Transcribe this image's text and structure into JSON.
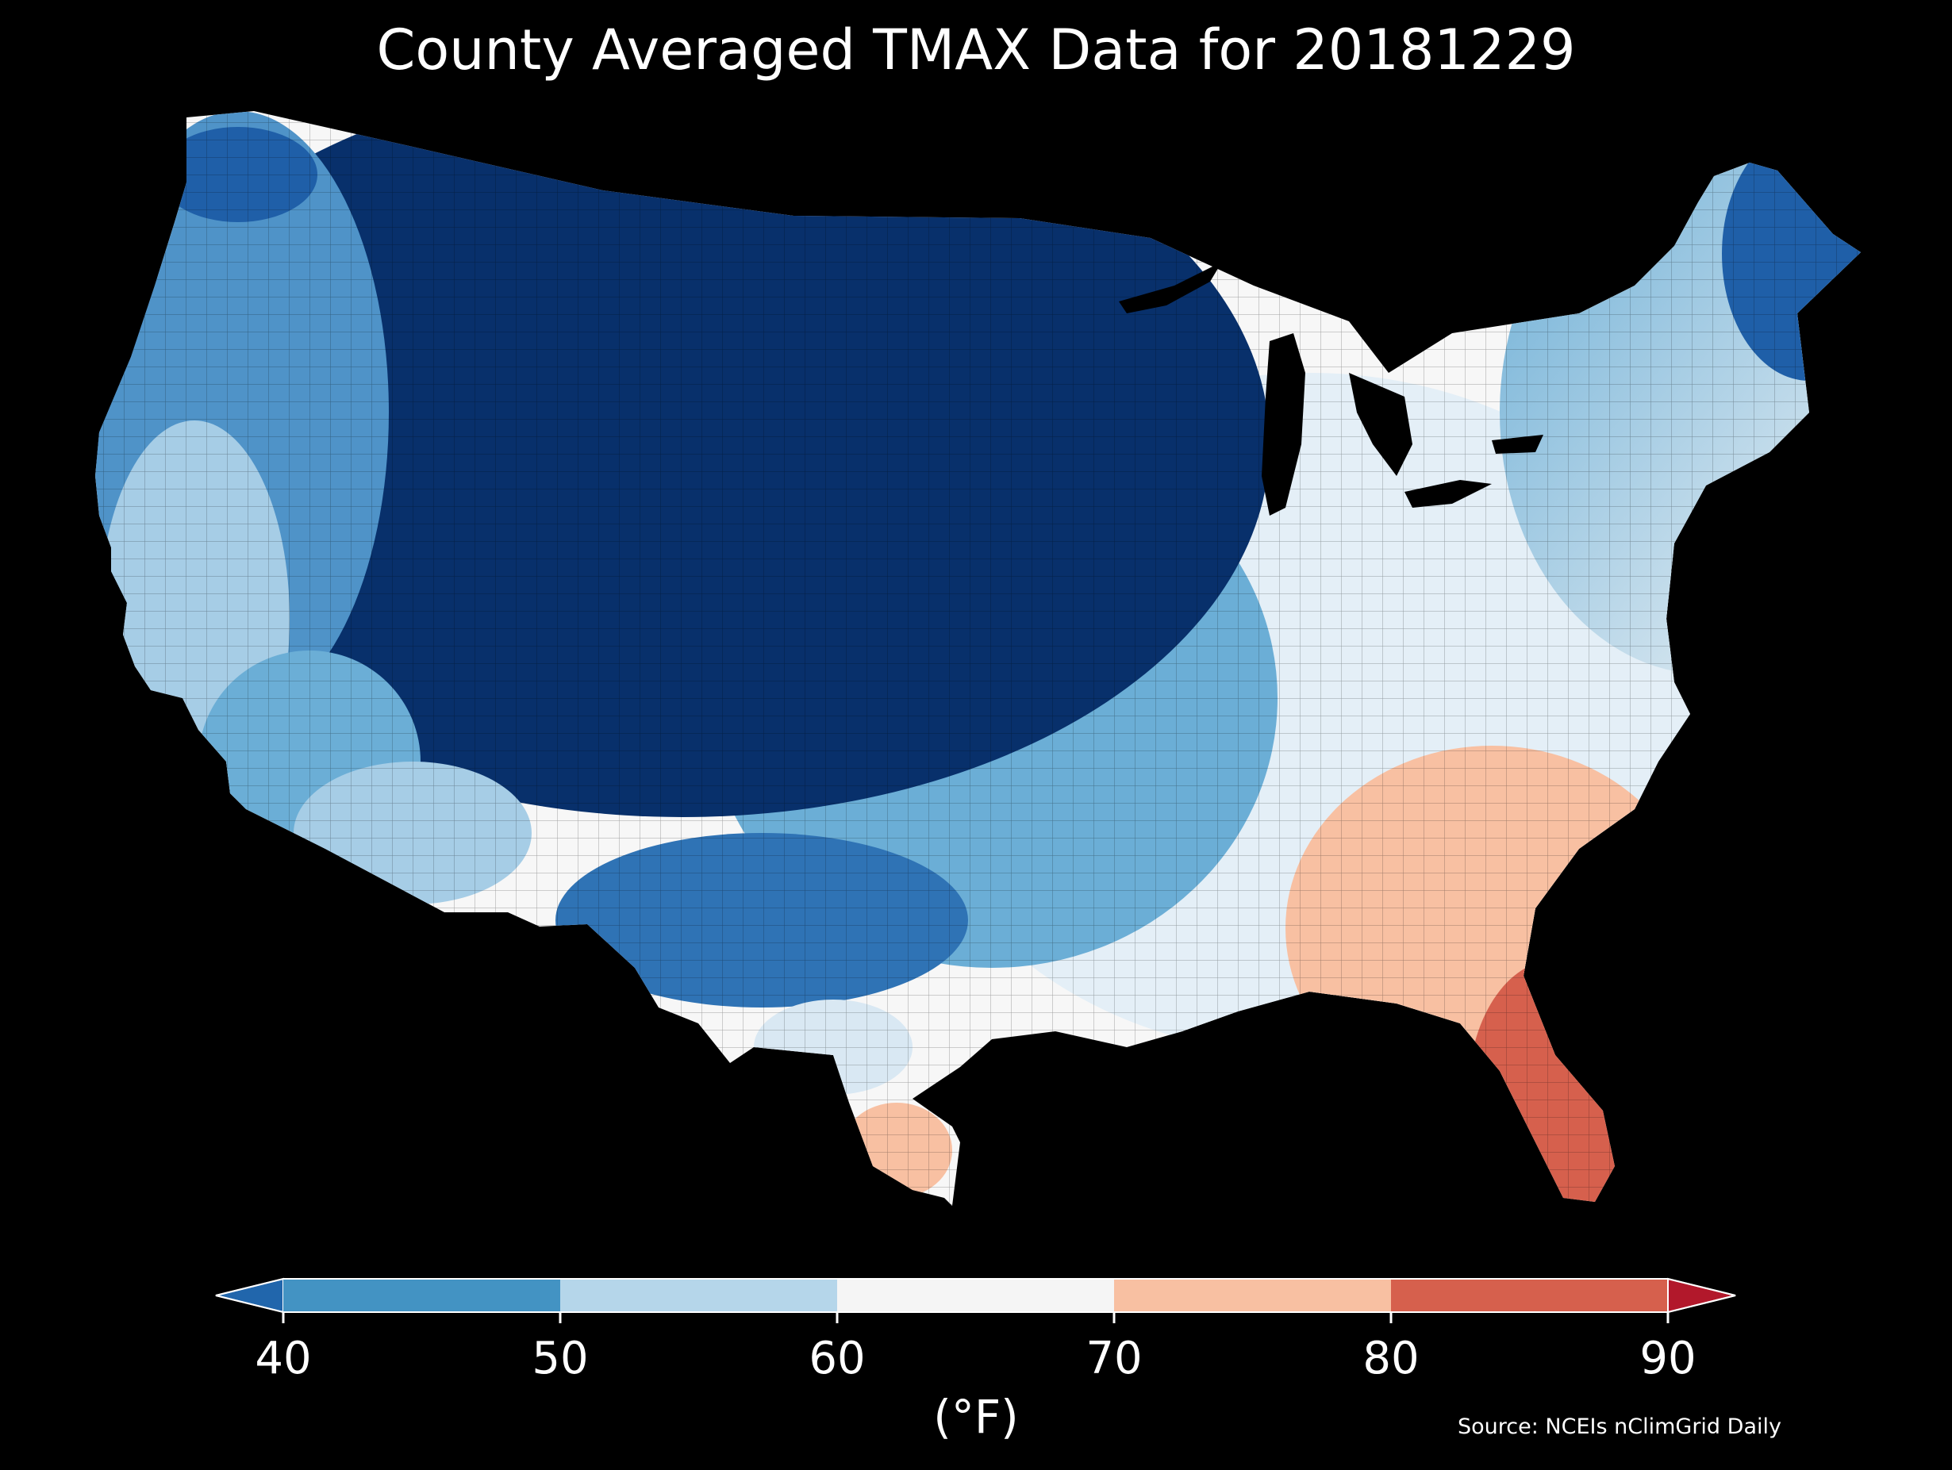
{
  "title": "County Averaged TMAX Data for 20181229",
  "colorbar": {
    "tick_labels": [
      "40",
      "50",
      "60",
      "70",
      "80",
      "90"
    ],
    "unit_label": "(°F)",
    "bins": [
      {
        "range": "<40",
        "color": "#2166ac"
      },
      {
        "range": "40-50",
        "color": "#4393c3"
      },
      {
        "range": "50-60",
        "color": "#b5d6ea"
      },
      {
        "range": "60-70",
        "color": "#f5f5f5"
      },
      {
        "range": "70-80",
        "color": "#f8c0a2"
      },
      {
        "range": "80-90",
        "color": "#d6604d"
      },
      {
        "range": ">90",
        "color": "#b2182b"
      }
    ]
  },
  "source": "Source: NCEIs nClimGrid Daily",
  "map_colors": {
    "deep_cold": "#08306b",
    "cold": "#1f5fa8",
    "cool": "#6baed6",
    "mild": "#cfe3f1",
    "neutral": "#f7f7f7",
    "warm": "#f3a582",
    "hot": "#d6604d"
  }
}
